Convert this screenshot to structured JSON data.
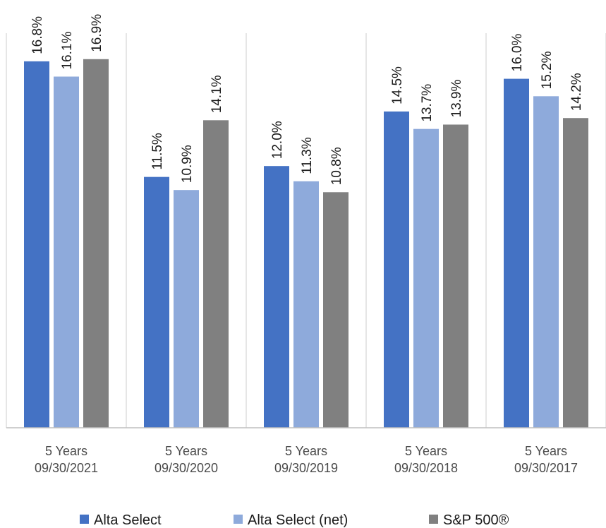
{
  "chart_data": {
    "type": "bar",
    "categories": [
      [
        "5 Years",
        "09/30/2021"
      ],
      [
        "5 Years",
        "09/30/2020"
      ],
      [
        "5 Years",
        "09/30/2019"
      ],
      [
        "5 Years",
        "09/30/2018"
      ],
      [
        "5 Years",
        "09/30/2017"
      ]
    ],
    "series": [
      {
        "name": "Alta Select",
        "color": "#4472c4",
        "values": [
          16.8,
          11.5,
          12.0,
          14.5,
          16.0
        ],
        "labels": [
          "16.8%",
          "11.5%",
          "12.0%",
          "14.5%",
          "16.0%"
        ]
      },
      {
        "name": "Alta Select (net)",
        "color": "#8eaadb",
        "values": [
          16.1,
          10.9,
          11.3,
          13.7,
          15.2
        ],
        "labels": [
          "16.1%",
          "10.9%",
          "11.3%",
          "13.7%",
          "15.2%"
        ]
      },
      {
        "name": "S&P 500®",
        "color": "#808080",
        "values": [
          16.9,
          14.1,
          10.8,
          13.9,
          14.2
        ],
        "labels": [
          "16.9%",
          "14.1%",
          "10.8%",
          "13.9%",
          "14.2%"
        ]
      }
    ],
    "ylim": [
      0,
      18
    ],
    "grid": false,
    "legend_position": "bottom",
    "title": "",
    "xlabel": "",
    "ylabel": ""
  }
}
